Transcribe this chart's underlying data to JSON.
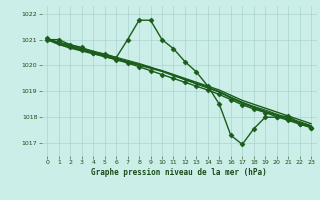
{
  "title": "Graphe pression niveau de la mer (hPa)",
  "bg_color": "#cceee8",
  "grid_color": "#aad4ce",
  "line_color": "#1a5c1a",
  "text_color": "#1a4a1a",
  "xlim": [
    -0.5,
    23.5
  ],
  "ylim": [
    1016.5,
    1022.3
  ],
  "yticks": [
    1017,
    1018,
    1019,
    1020,
    1021,
    1022
  ],
  "xticks": [
    0,
    1,
    2,
    3,
    4,
    5,
    6,
    7,
    8,
    9,
    10,
    11,
    12,
    13,
    14,
    15,
    16,
    17,
    18,
    19,
    20,
    21,
    22,
    23
  ],
  "series": [
    {
      "x": [
        0,
        1,
        2,
        3,
        4,
        5,
        6,
        7,
        8,
        9,
        10,
        11,
        12,
        13,
        14,
        15,
        16,
        17,
        18,
        19,
        20,
        21,
        22,
        23
      ],
      "y": [
        1021.0,
        1021.0,
        1020.8,
        1020.7,
        1020.5,
        1020.45,
        1020.3,
        1021.0,
        1021.75,
        1021.75,
        1021.0,
        1020.65,
        1020.15,
        1019.75,
        1019.2,
        1018.5,
        1017.3,
        1016.95,
        1017.55,
        1018.0,
        1018.0,
        1018.05,
        1017.75,
        1017.6
      ],
      "marker": "D",
      "ms": 2.5,
      "lw": 1.0
    },
    {
      "x": [
        0,
        1,
        2,
        3,
        4,
        5,
        6,
        7,
        8,
        9,
        10,
        11,
        12,
        13,
        14,
        15,
        16,
        17,
        18,
        19,
        20,
        21,
        22,
        23
      ],
      "y": [
        1021.0,
        1020.82,
        1020.68,
        1020.57,
        1020.46,
        1020.35,
        1020.24,
        1020.13,
        1020.02,
        1019.9,
        1019.78,
        1019.62,
        1019.46,
        1019.3,
        1019.14,
        1018.98,
        1018.75,
        1018.55,
        1018.38,
        1018.22,
        1018.08,
        1017.93,
        1017.78,
        1017.65
      ],
      "marker": null,
      "ms": 0,
      "lw": 1.3
    },
    {
      "x": [
        0,
        1,
        2,
        3,
        4,
        5,
        6,
        7,
        8,
        9,
        10,
        11,
        12,
        13,
        14,
        15,
        16,
        17,
        18,
        19,
        20,
        21,
        22,
        23
      ],
      "y": [
        1021.0,
        1020.88,
        1020.76,
        1020.64,
        1020.52,
        1020.4,
        1020.28,
        1020.16,
        1020.04,
        1019.92,
        1019.8,
        1019.65,
        1019.5,
        1019.35,
        1019.2,
        1019.05,
        1018.85,
        1018.65,
        1018.5,
        1018.35,
        1018.2,
        1018.05,
        1017.9,
        1017.75
      ],
      "marker": null,
      "ms": 0,
      "lw": 1.0
    },
    {
      "x": [
        0,
        1,
        2,
        3,
        4,
        5,
        6,
        7,
        8,
        9,
        10,
        11,
        12,
        13,
        14,
        15,
        16,
        17,
        18,
        19,
        20,
        21,
        22,
        23
      ],
      "y": [
        1021.0,
        1020.9,
        1020.8,
        1020.68,
        1020.56,
        1020.44,
        1020.32,
        1020.2,
        1020.08,
        1019.94,
        1019.78,
        1019.62,
        1019.46,
        1019.3,
        1019.14,
        1018.98,
        1018.78,
        1018.58,
        1018.42,
        1018.28,
        1018.12,
        1017.98,
        1017.83,
        1017.68
      ],
      "marker": null,
      "ms": 0,
      "lw": 0.8
    },
    {
      "x": [
        0,
        1,
        2,
        3,
        4,
        5,
        6,
        7,
        8,
        9,
        10,
        11,
        12,
        13,
        14,
        15,
        16,
        17,
        18,
        19,
        20,
        21,
        22,
        23
      ],
      "y": [
        1021.05,
        1020.88,
        1020.73,
        1020.6,
        1020.47,
        1020.35,
        1020.22,
        1020.1,
        1019.95,
        1019.8,
        1019.65,
        1019.5,
        1019.35,
        1019.2,
        1019.05,
        1018.88,
        1018.68,
        1018.48,
        1018.32,
        1018.18,
        1018.02,
        1017.88,
        1017.73,
        1017.6
      ],
      "marker": "D",
      "ms": 2.5,
      "lw": 1.0
    }
  ]
}
